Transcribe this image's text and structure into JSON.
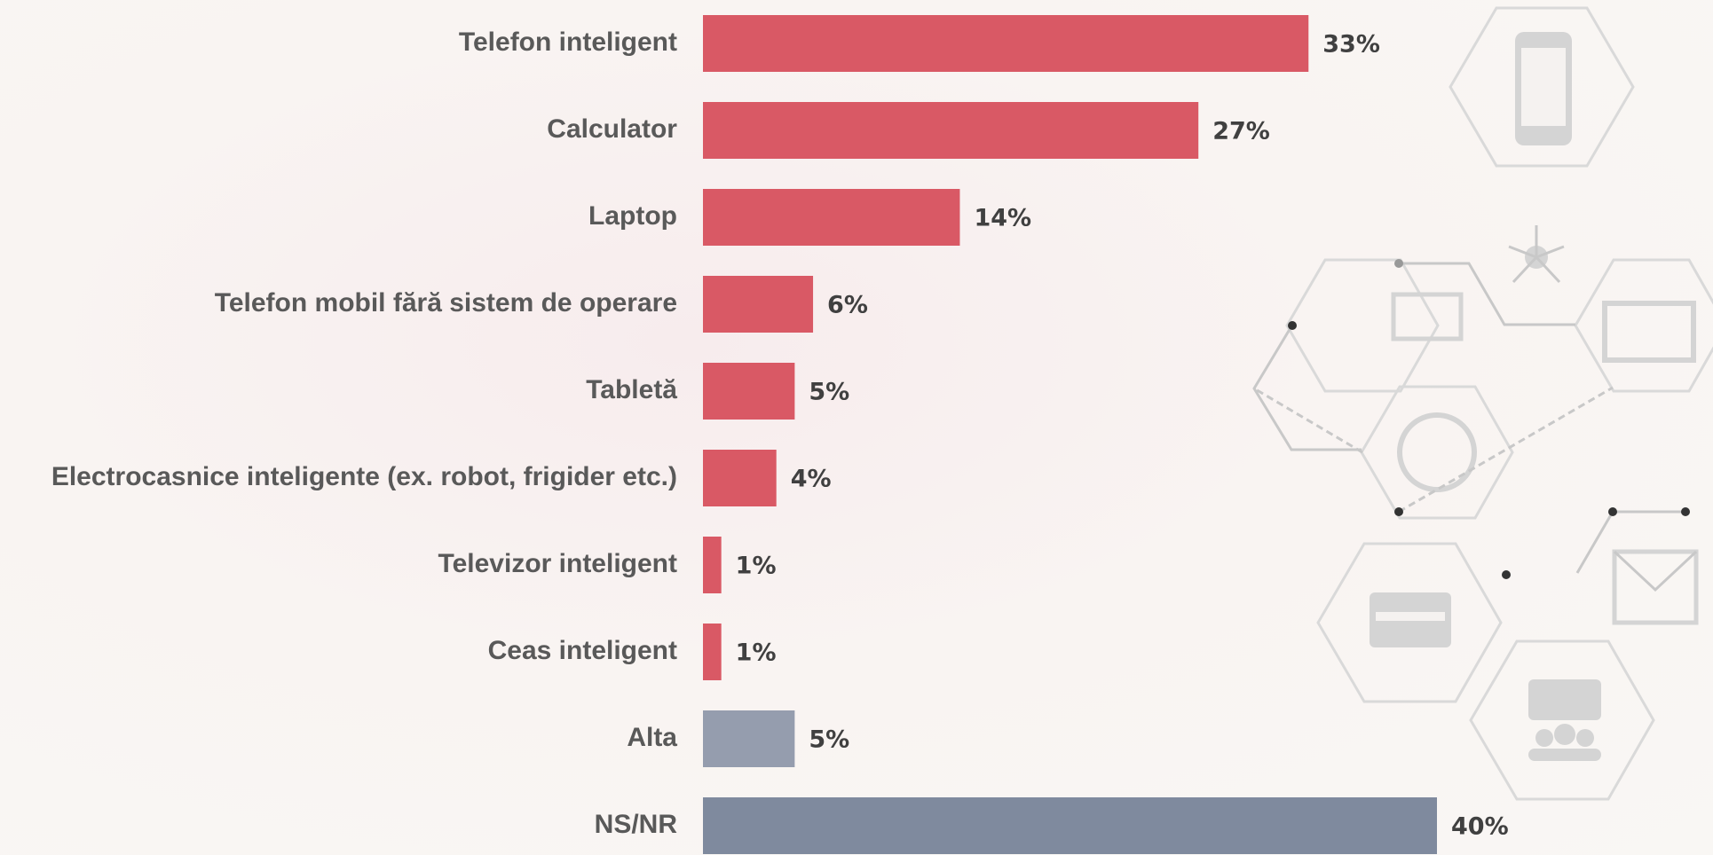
{
  "chart_data": {
    "type": "bar",
    "orientation": "horizontal",
    "categories": [
      "Telefon inteligent",
      "Calculator",
      "Laptop",
      "Telefon mobil fără sistem de operare",
      "Tabletă",
      "Electrocasnice inteligente (ex. robot, frigider etc.)",
      "Televizor inteligent",
      "Ceas inteligent",
      "Alta",
      "NS/NR"
    ],
    "values": [
      33,
      27,
      14,
      6,
      5,
      4,
      1,
      1,
      5,
      40
    ],
    "value_labels": [
      "33%",
      "27%",
      "14%",
      "6%",
      "5%",
      "4%",
      "1%",
      "1%",
      "5%",
      "40%"
    ],
    "colors": [
      "#d95965",
      "#d95965",
      "#d95965",
      "#d95965",
      "#d95965",
      "#d95965",
      "#d95965",
      "#d95965",
      "#959dae",
      "#7f8a9e"
    ]
  }
}
